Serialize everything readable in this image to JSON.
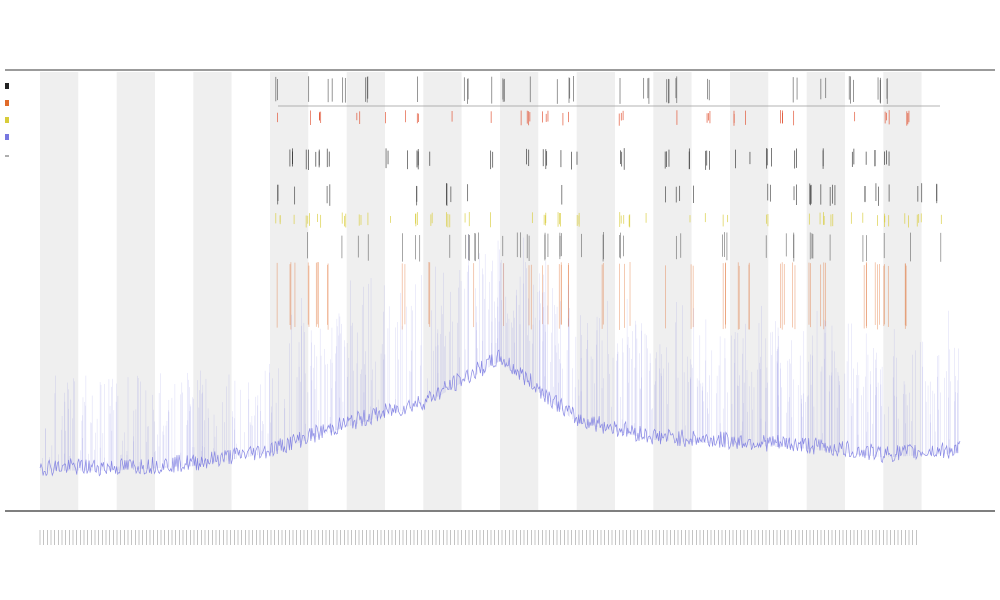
{
  "chart_data": {
    "type": "line",
    "title": "",
    "subtitle_1": "",
    "subtitle_2": "",
    "xlabel": "",
    "ylabel": "",
    "grid": false,
    "legend_position": "top-left",
    "band_color_light": "#ffffff",
    "band_color_dark": "#efefef",
    "band_count": 24,
    "x_range": [
      0,
      24
    ],
    "y_range": [
      0,
      1
    ],
    "series": [
      {
        "style": "envelope-line",
        "color": "#7777e0",
        "baseline_profile_x": [
          0,
          2,
          4,
          6,
          8,
          10,
          12,
          14,
          16,
          18,
          20,
          22,
          24
        ],
        "baseline_profile_y": [
          0.09,
          0.09,
          0.1,
          0.13,
          0.19,
          0.24,
          0.34,
          0.2,
          0.16,
          0.15,
          0.14,
          0.12,
          0.13
        ]
      },
      {
        "style": "event-ticks",
        "color": "#e04b2a",
        "band": "upper-red"
      },
      {
        "style": "event-ticks",
        "color": "#222222",
        "band": "upper-black"
      },
      {
        "style": "event-ticks",
        "color": "#222222",
        "band": "middle-black"
      },
      {
        "style": "event-ticks",
        "color": "#d8cc3a",
        "band": "yellow"
      },
      {
        "style": "event-ticks",
        "color": "#333333",
        "band": "dark-grey"
      },
      {
        "style": "event-ticks",
        "color": "#e06b2a",
        "band": "orange"
      }
    ],
    "legend": [
      {
        "color": "#222222",
        "label": ""
      },
      {
        "color": "#e06b2a",
        "label": ""
      },
      {
        "color": "#d8cc3a",
        "label": ""
      },
      {
        "color": "#7777e0",
        "label": ""
      }
    ],
    "track_labels": [
      "",
      ""
    ]
  }
}
